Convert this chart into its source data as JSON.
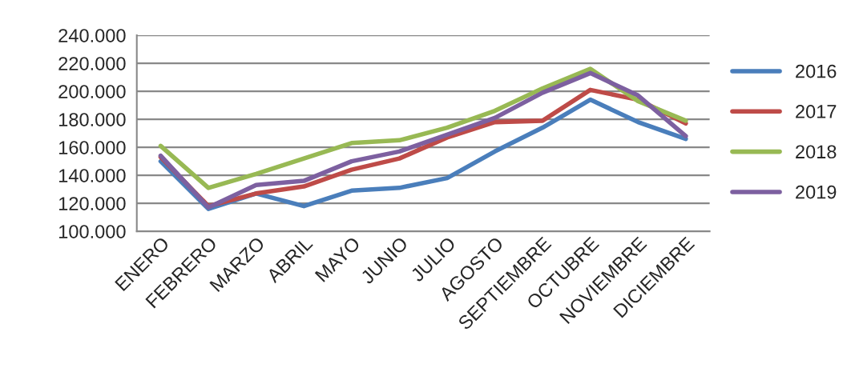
{
  "chart_data": {
    "type": "line",
    "categories": [
      "ENERO",
      "FEBRERO",
      "MARZO",
      "ABRIL",
      "MAYO",
      "JUNIO",
      "JULIO",
      "AGOSTO",
      "SEPTIEMBRE",
      "OCTUBRE",
      "NOVIEMBRE",
      "DICIEMBRE"
    ],
    "series": [
      {
        "name": "2016",
        "color": "#4a7ebb",
        "values": [
          150000,
          116000,
          127000,
          118000,
          129000,
          131000,
          138000,
          157000,
          174000,
          194000,
          178000,
          166000
        ]
      },
      {
        "name": "2017",
        "color": "#be4b48",
        "values": [
          153000,
          118000,
          127000,
          132000,
          144000,
          152000,
          167000,
          178000,
          179000,
          201000,
          194000,
          177000
        ]
      },
      {
        "name": "2018",
        "color": "#98b954",
        "values": [
          161000,
          131000,
          141000,
          152000,
          163000,
          165000,
          174000,
          186000,
          202000,
          216000,
          193000,
          179000
        ]
      },
      {
        "name": "2019",
        "color": "#7d60a0",
        "values": [
          154000,
          117000,
          133000,
          136000,
          150000,
          157000,
          169000,
          181000,
          199000,
          213000,
          197000,
          168000
        ]
      }
    ],
    "ylim": [
      100000,
      240000
    ],
    "yticks": [
      {
        "value": 100000,
        "label": "100.000"
      },
      {
        "value": 120000,
        "label": "120.000"
      },
      {
        "value": 140000,
        "label": "140.000"
      },
      {
        "value": 160000,
        "label": "160.000"
      },
      {
        "value": 180000,
        "label": "180.000"
      },
      {
        "value": 200000,
        "label": "200.000"
      },
      {
        "value": 220000,
        "label": "220.000"
      },
      {
        "value": 240000,
        "label": "240.000"
      }
    ],
    "grid": "y",
    "legend": "right",
    "marker": "none",
    "line_style": "solid"
  }
}
